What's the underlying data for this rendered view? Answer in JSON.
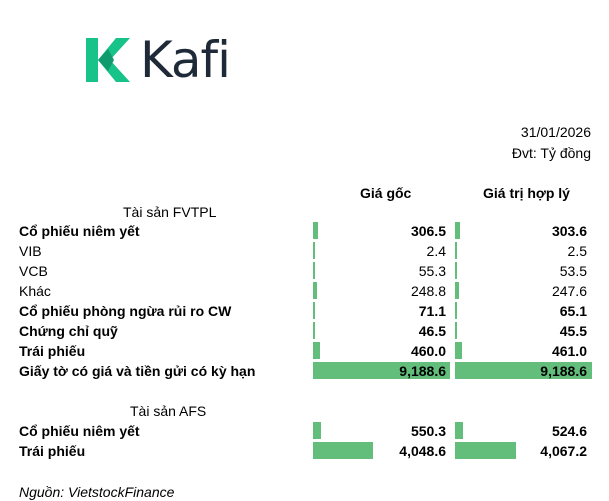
{
  "logo": {
    "text": "Kafi",
    "mark_color": "#18c38a",
    "word_color": "#1f2a38"
  },
  "header": {
    "date": "31/01/2026",
    "unit": "Đvt: Tỷ đồng",
    "col_cost": "Giá gốc",
    "col_fair": "Giá trị hợp lý"
  },
  "fvtpl": {
    "title": "Tài sản FVTPL",
    "rows": [
      {
        "label": "Cổ phiếu niêm yết",
        "cost": "306.5",
        "fair": "303.6",
        "bold": true,
        "cost_num": 306.5,
        "fair_num": 303.6
      },
      {
        "label": "VIB",
        "cost": "2.4",
        "fair": "2.5",
        "bold": false,
        "cost_num": 2.4,
        "fair_num": 2.5
      },
      {
        "label": "VCB",
        "cost": "55.3",
        "fair": "53.5",
        "bold": false,
        "cost_num": 55.3,
        "fair_num": 53.5
      },
      {
        "label": "Khác",
        "cost": "248.8",
        "fair": "247.6",
        "bold": false,
        "cost_num": 248.8,
        "fair_num": 247.6
      },
      {
        "label": "Cổ phiếu phòng ngừa rủi ro CW",
        "cost": "71.1",
        "fair": "65.1",
        "bold": true,
        "cost_num": 71.1,
        "fair_num": 65.1
      },
      {
        "label": "Chứng chỉ quỹ",
        "cost": "46.5",
        "fair": "45.5",
        "bold": true,
        "cost_num": 46.5,
        "fair_num": 45.5
      },
      {
        "label": "Trái phiếu",
        "cost": "460.0",
        "fair": "461.0",
        "bold": true,
        "cost_num": 460.0,
        "fair_num": 461.0
      },
      {
        "label": "Giấy tờ có giá và tiền gửi có kỳ hạn",
        "cost": "9,188.6",
        "fair": "9,188.6",
        "bold": true,
        "cost_num": 9188.6,
        "fair_num": 9188.6
      }
    ]
  },
  "afs": {
    "title": "Tài sản AFS",
    "rows": [
      {
        "label": "Cổ phiếu niêm yết",
        "cost": "550.3",
        "fair": "524.6",
        "bold": true,
        "cost_num": 550.3,
        "fair_num": 524.6
      },
      {
        "label": "Trái phiếu",
        "cost": "4,048.6",
        "fair": "4,067.2",
        "bold": true,
        "cost_num": 4048.6,
        "fair_num": 4067.2
      }
    ]
  },
  "bar_color": "#63be7b",
  "source": "Nguồn: VietstockFinance"
}
